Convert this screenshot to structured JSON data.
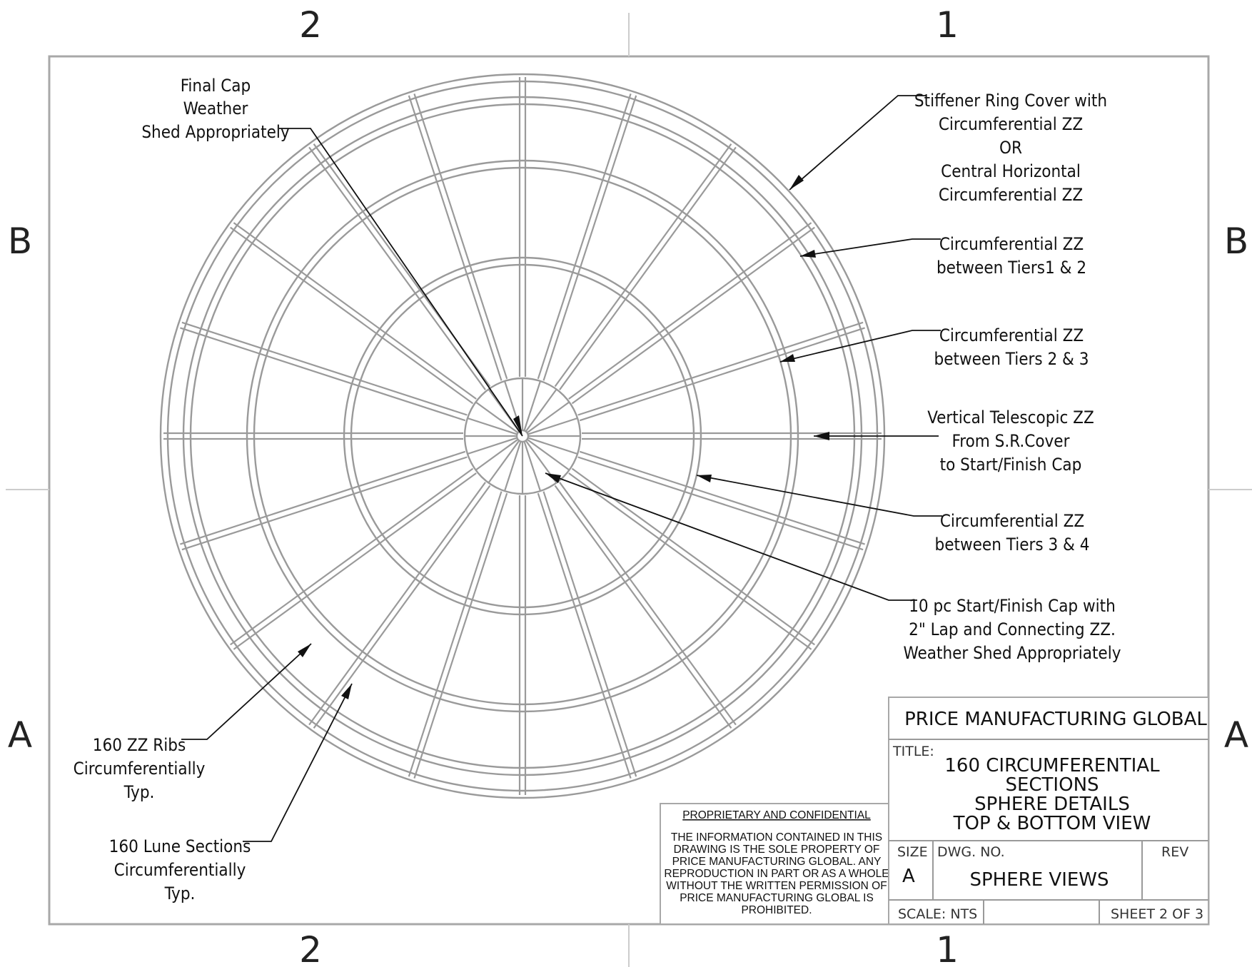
{
  "zones": {
    "top_left": "2",
    "top_right": "1",
    "bottom_left": "2",
    "bottom_right": "1",
    "left_upper": "B",
    "left_lower": "A",
    "right_upper": "B",
    "right_lower": "A"
  },
  "callouts": {
    "final_cap": [
      "Final Cap",
      "Weather",
      "Shed Appropriately"
    ],
    "stiffener": [
      "Stiffener Ring Cover with",
      "Circumferential ZZ",
      "OR",
      "Central Horizontal",
      "Circumferential ZZ"
    ],
    "tiers_1_2": [
      "Circumferential ZZ",
      "between Tiers1 & 2"
    ],
    "tiers_2_3": [
      "Circumferential ZZ",
      "between Tiers 2 & 3"
    ],
    "vertical": [
      "Vertical Telescopic ZZ",
      "From S.R.Cover",
      "to Start/Finish Cap"
    ],
    "tiers_3_4": [
      "Circumferential ZZ",
      "between Tiers 3 & 4"
    ],
    "start_cap": [
      "10 pc Start/Finish Cap with",
      "2\" Lap and Connecting ZZ.",
      "Weather Shed Appropriately"
    ],
    "ribs": [
      "160 ZZ Ribs",
      "Circumferentially",
      "Typ."
    ],
    "lunes": [
      "160 Lune Sections",
      "Circumferentially",
      "Typ."
    ]
  },
  "title_block": {
    "company": "PRICE MANUFACTURING GLOBAL",
    "title_label": "TITLE:",
    "title_lines": [
      "160 CIRCUMFERENTIAL",
      "SECTIONS",
      "SPHERE DETAILS",
      "TOP & BOTTOM VIEW"
    ],
    "size_label": "SIZE",
    "size_value": "A",
    "dwg_label": "DWG.  NO.",
    "dwg_value": "SPHERE VIEWS",
    "rev_label": "REV",
    "scale": "SCALE: NTS",
    "sheet": "SHEET 2 OF 3"
  },
  "proprietary": {
    "heading": "PROPRIETARY AND CONFIDENTIAL",
    "lines": [
      "THE INFORMATION CONTAINED IN THIS",
      "DRAWING IS THE SOLE PROPERTY OF",
      "PRICE MANUFACTURING GLOBAL.  ANY",
      "REPRODUCTION IN PART OR AS A WHOLE",
      "WITHOUT THE WRITTEN PERMISSION OF",
      "PRICE MANUFACTURING GLOBAL IS",
      "PROHIBITED."
    ]
  }
}
